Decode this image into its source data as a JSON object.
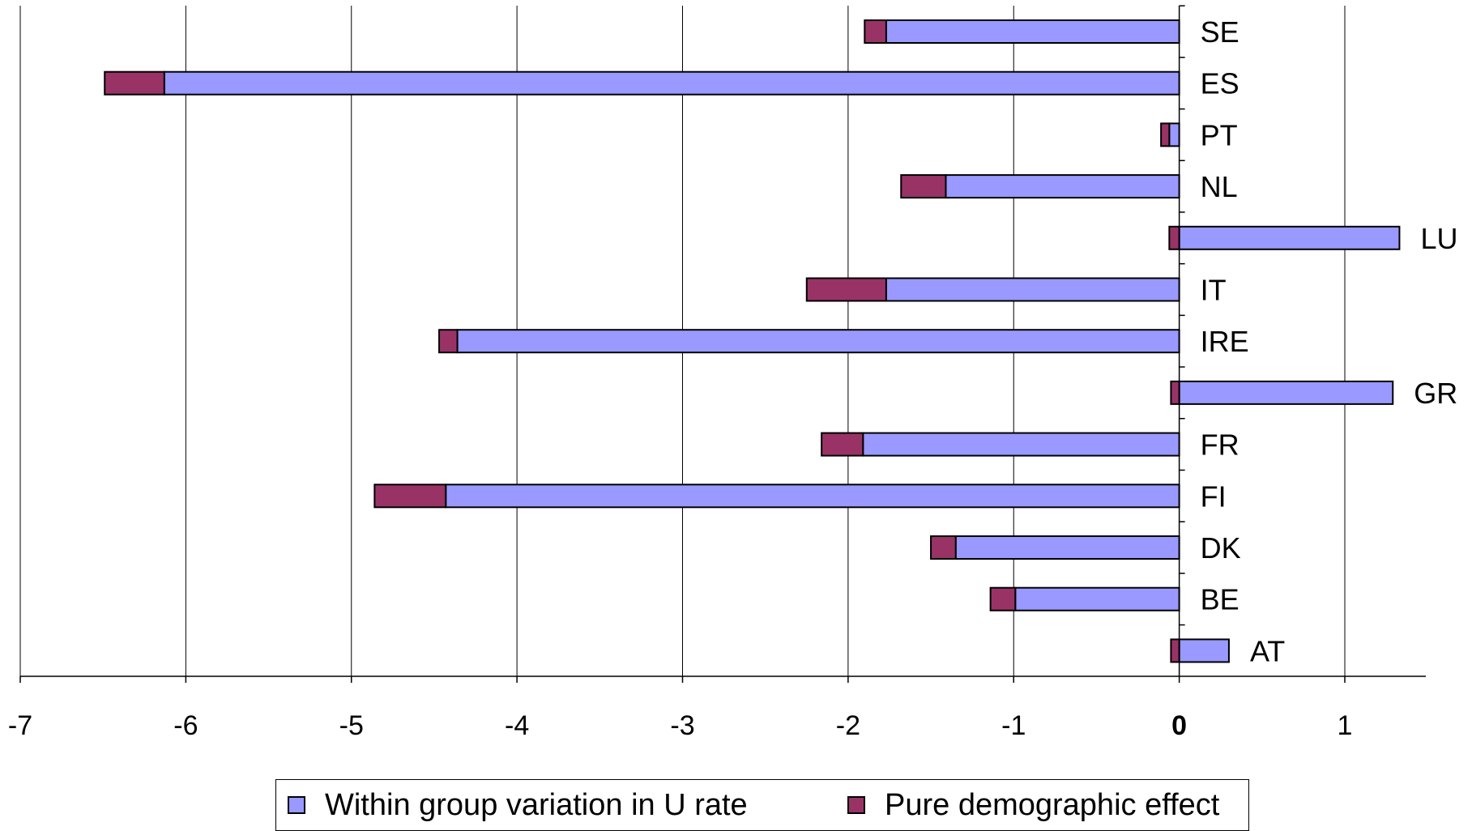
{
  "chart_data": {
    "type": "bar",
    "orientation": "horizontal",
    "stacked": true,
    "title": "",
    "xlabel": "",
    "ylabel": "",
    "xlim": [
      -7,
      1.5
    ],
    "xticks": [
      "-7",
      "-6",
      "-5",
      "-4",
      "-3",
      "-2",
      "-1",
      "0",
      "1"
    ],
    "grid": true,
    "legend_position": "bottom",
    "categories": [
      "SE",
      "ES",
      "PT",
      "NL",
      "LU",
      "IT",
      "IRE",
      "GR",
      "FR",
      "FI",
      "DK",
      "BE",
      "AT"
    ],
    "series": [
      {
        "name": "Within group variation in U rate",
        "color": "#9999ff",
        "values": [
          -1.77,
          -6.13,
          -0.06,
          -1.41,
          1.33,
          -1.77,
          -4.36,
          1.29,
          -1.91,
          -4.43,
          -1.35,
          -0.99,
          0.3
        ]
      },
      {
        "name": "Pure demographic effect",
        "color": "#993366",
        "values": [
          -0.13,
          -0.36,
          -0.05,
          -0.27,
          -0.06,
          -0.48,
          -0.11,
          -0.05,
          -0.25,
          -0.43,
          -0.15,
          -0.15,
          -0.05
        ]
      }
    ]
  }
}
